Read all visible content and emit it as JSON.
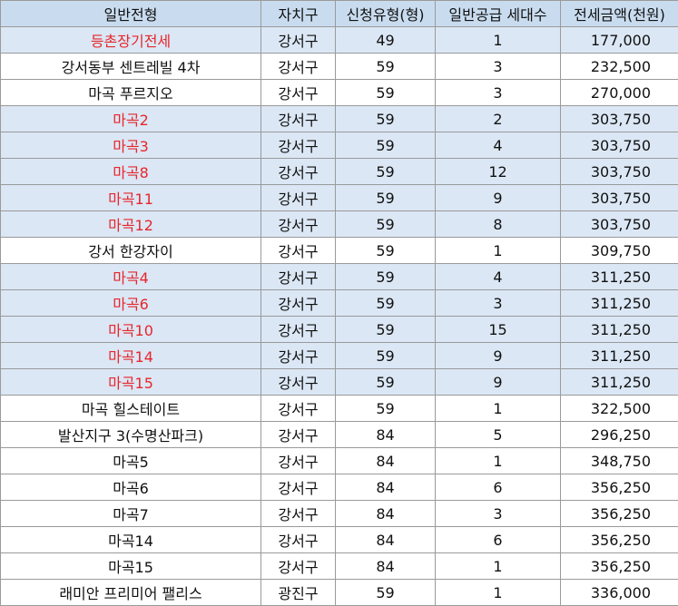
{
  "table": {
    "headers": [
      "일반전형",
      "자치구",
      "신청유형(형)",
      "일반공급 세대수",
      "전세금액(천원)"
    ],
    "rows": [
      {
        "name": "등촌장기전세",
        "district": "강서구",
        "type": "49",
        "units": "1",
        "amount": "177,000",
        "red": true,
        "shaded": true
      },
      {
        "name": "강서동부 센트레빌 4차",
        "district": "강서구",
        "type": "59",
        "units": "3",
        "amount": "232,500",
        "red": false,
        "shaded": false
      },
      {
        "name": "마곡 푸르지오",
        "district": "강서구",
        "type": "59",
        "units": "3",
        "amount": "270,000",
        "red": false,
        "shaded": false
      },
      {
        "name": "마곡2",
        "district": "강서구",
        "type": "59",
        "units": "2",
        "amount": "303,750",
        "red": true,
        "shaded": true
      },
      {
        "name": "마곡3",
        "district": "강서구",
        "type": "59",
        "units": "4",
        "amount": "303,750",
        "red": true,
        "shaded": true
      },
      {
        "name": "마곡8",
        "district": "강서구",
        "type": "59",
        "units": "12",
        "amount": "303,750",
        "red": true,
        "shaded": true
      },
      {
        "name": "마곡11",
        "district": "강서구",
        "type": "59",
        "units": "9",
        "amount": "303,750",
        "red": true,
        "shaded": true
      },
      {
        "name": "마곡12",
        "district": "강서구",
        "type": "59",
        "units": "8",
        "amount": "303,750",
        "red": true,
        "shaded": true
      },
      {
        "name": "강서 한강자이",
        "district": "강서구",
        "type": "59",
        "units": "1",
        "amount": "309,750",
        "red": false,
        "shaded": false
      },
      {
        "name": "마곡4",
        "district": "강서구",
        "type": "59",
        "units": "4",
        "amount": "311,250",
        "red": true,
        "shaded": true
      },
      {
        "name": "마곡6",
        "district": "강서구",
        "type": "59",
        "units": "3",
        "amount": "311,250",
        "red": true,
        "shaded": true
      },
      {
        "name": "마곡10",
        "district": "강서구",
        "type": "59",
        "units": "15",
        "amount": "311,250",
        "red": true,
        "shaded": true
      },
      {
        "name": "마곡14",
        "district": "강서구",
        "type": "59",
        "units": "9",
        "amount": "311,250",
        "red": true,
        "shaded": true
      },
      {
        "name": "마곡15",
        "district": "강서구",
        "type": "59",
        "units": "9",
        "amount": "311,250",
        "red": true,
        "shaded": true
      },
      {
        "name": "마곡 힐스테이트",
        "district": "강서구",
        "type": "59",
        "units": "1",
        "amount": "322,500",
        "red": false,
        "shaded": false
      },
      {
        "name": "발산지구 3(수명산파크)",
        "district": "강서구",
        "type": "84",
        "units": "5",
        "amount": "296,250",
        "red": false,
        "shaded": false
      },
      {
        "name": "마곡5",
        "district": "강서구",
        "type": "84",
        "units": "1",
        "amount": "348,750",
        "red": false,
        "shaded": false
      },
      {
        "name": "마곡6",
        "district": "강서구",
        "type": "84",
        "units": "6",
        "amount": "356,250",
        "red": false,
        "shaded": false
      },
      {
        "name": "마곡7",
        "district": "강서구",
        "type": "84",
        "units": "3",
        "amount": "356,250",
        "red": false,
        "shaded": false
      },
      {
        "name": "마곡14",
        "district": "강서구",
        "type": "84",
        "units": "6",
        "amount": "356,250",
        "red": false,
        "shaded": false
      },
      {
        "name": "마곡15",
        "district": "강서구",
        "type": "84",
        "units": "1",
        "amount": "356,250",
        "red": false,
        "shaded": false
      },
      {
        "name": "래미안 프리미어 팰리스",
        "district": "광진구",
        "type": "59",
        "units": "1",
        "amount": "336,000",
        "red": false,
        "shaded": false
      }
    ]
  },
  "colors": {
    "header_bg": "#c9dcef",
    "highlight_row_bg": "#dbe7f5",
    "highlight_text": "#e8262b",
    "grid": "#9a9a9a"
  }
}
